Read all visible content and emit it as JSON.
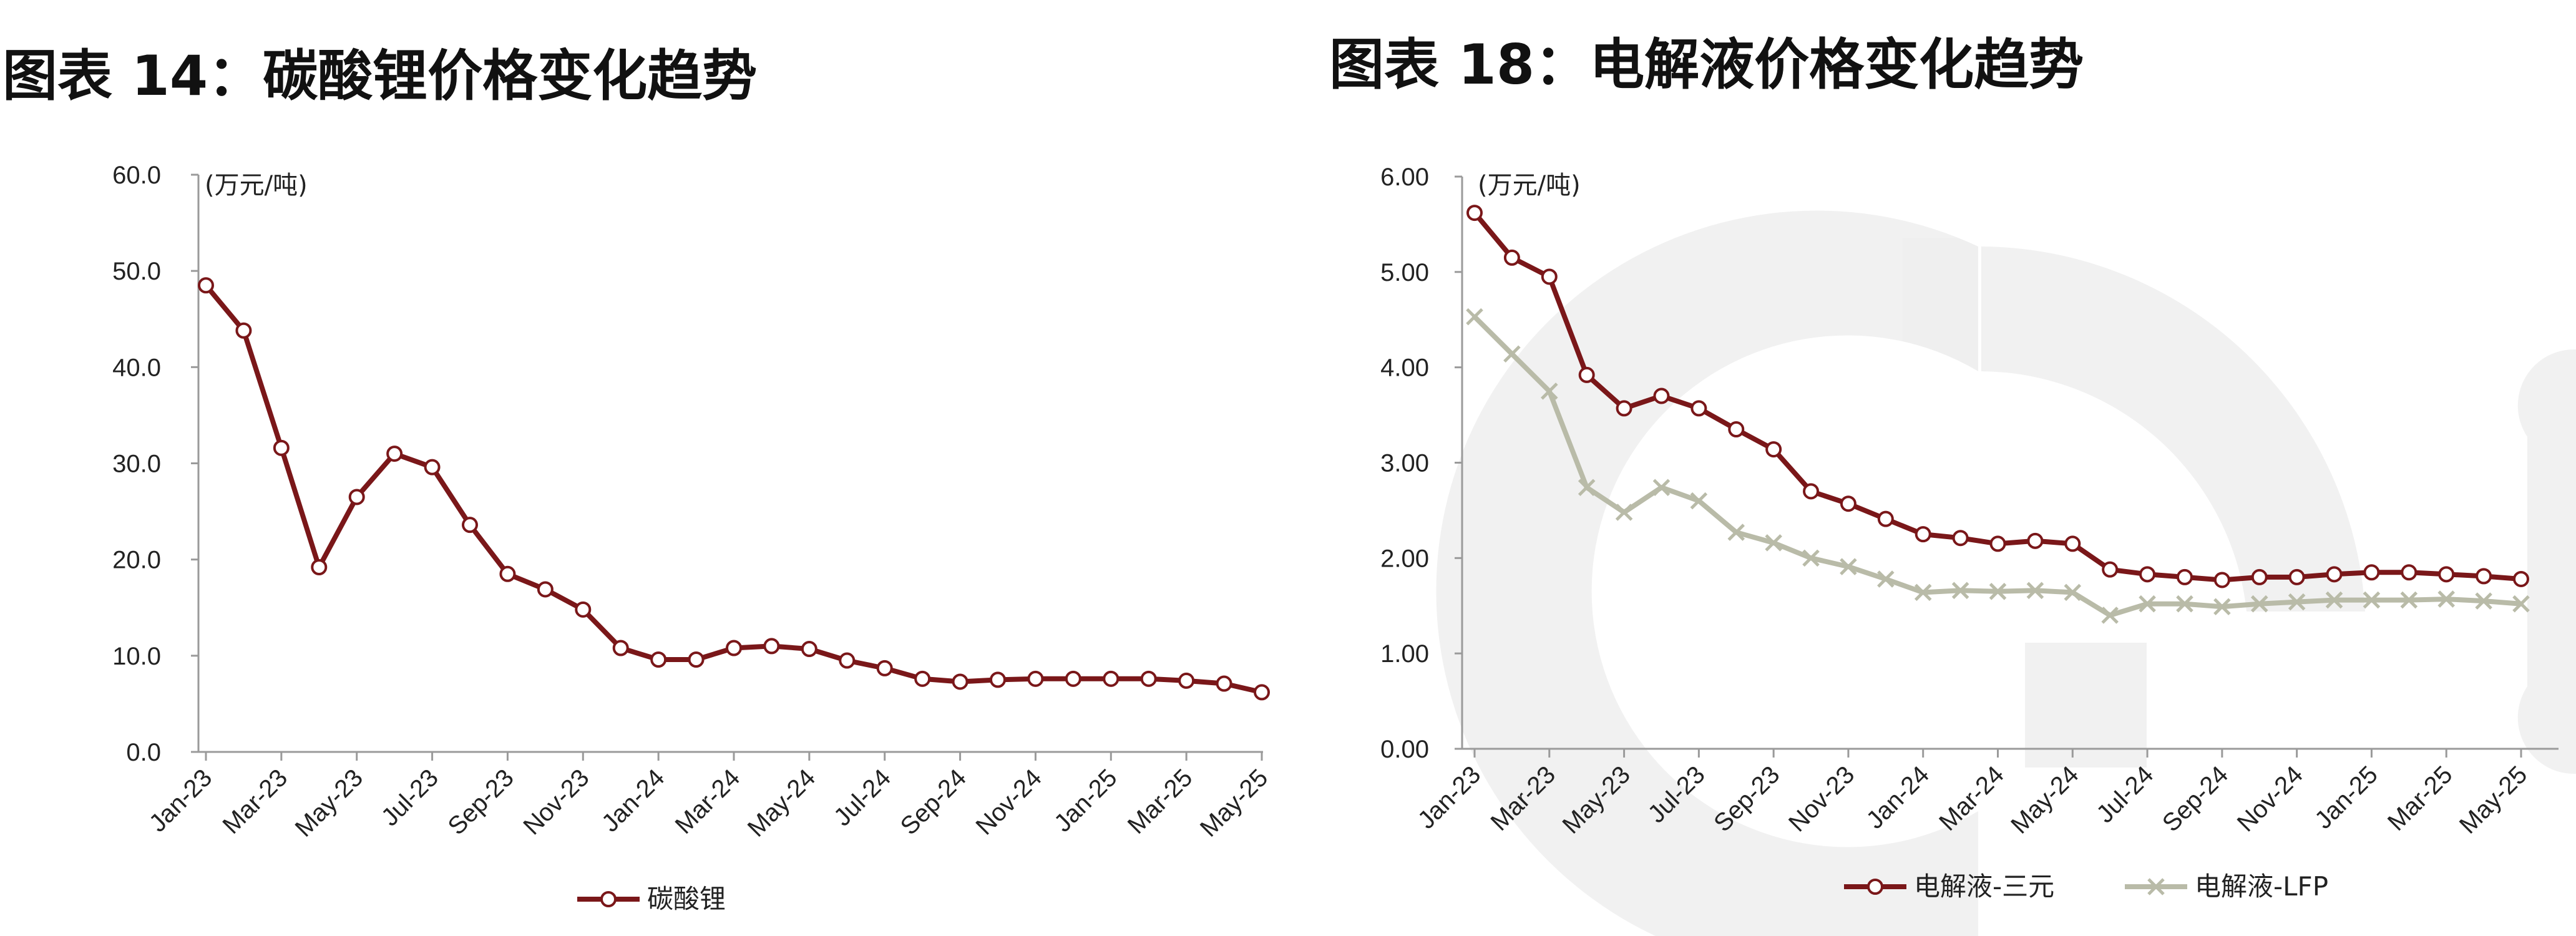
{
  "charts": [
    {
      "title": "图表 14：碳酸锂价格变化趋势"
    },
    {
      "title": "图表 18：电解液价格变化趋势"
    }
  ],
  "chart_data": [
    {
      "type": "line",
      "title": "图表 14：碳酸锂价格变化趋势",
      "unit_label": "(万元/吨)",
      "xlabel": "",
      "ylabel": "",
      "ylim": [
        0,
        60
      ],
      "y_ticks": [
        "0.0",
        "10.0",
        "20.0",
        "30.0",
        "40.0",
        "50.0",
        "60.0"
      ],
      "x": [
        "Jan-23",
        "Feb-23",
        "Mar-23",
        "Apr-23",
        "May-23",
        "Jun-23",
        "Jul-23",
        "Aug-23",
        "Sep-23",
        "Oct-23",
        "Nov-23",
        "Dec-23",
        "Jan-24",
        "Feb-24",
        "Mar-24",
        "Apr-24",
        "May-24",
        "Jun-24",
        "Jul-24",
        "Aug-24",
        "Sep-24",
        "Oct-24",
        "Nov-24",
        "Dec-24",
        "Jan-25",
        "Feb-25",
        "Mar-25",
        "Apr-25",
        "May-25"
      ],
      "x_tick_labels": [
        "Jan-23",
        "Mar-23",
        "May-23",
        "Jul-23",
        "Sep-23",
        "Nov-23",
        "Jan-24",
        "Mar-24",
        "May-24",
        "Jul-24",
        "Sep-24",
        "Nov-24",
        "Jan-25",
        "Mar-25",
        "May-25"
      ],
      "legend_position": "bottom",
      "grid": false,
      "series": [
        {
          "name": "碳酸锂",
          "color": "#7a1719",
          "marker": "circle",
          "values": [
            48.5,
            43.8,
            31.6,
            19.2,
            26.5,
            31.0,
            29.6,
            23.6,
            18.5,
            16.9,
            14.8,
            10.8,
            9.6,
            9.6,
            10.8,
            11.0,
            10.7,
            9.5,
            8.7,
            7.6,
            7.3,
            7.5,
            7.6,
            7.6,
            7.6,
            7.6,
            7.4,
            7.1,
            6.2
          ]
        }
      ]
    },
    {
      "type": "line",
      "title": "图表 18：电解液价格变化趋势",
      "unit_label": "(万元/吨)",
      "xlabel": "",
      "ylabel": "",
      "ylim": [
        0,
        6
      ],
      "y_ticks": [
        "0.00",
        "1.00",
        "2.00",
        "3.00",
        "4.00",
        "5.00",
        "6.00"
      ],
      "x": [
        "Jan-23",
        "Feb-23",
        "Mar-23",
        "Apr-23",
        "May-23",
        "Jun-23",
        "Jul-23",
        "Aug-23",
        "Sep-23",
        "Oct-23",
        "Nov-23",
        "Dec-23",
        "Jan-24",
        "Feb-24",
        "Mar-24",
        "Apr-24",
        "May-24",
        "Jun-24",
        "Jul-24",
        "Aug-24",
        "Sep-24",
        "Oct-24",
        "Nov-24",
        "Dec-24",
        "Jan-25",
        "Feb-25",
        "Mar-25",
        "Apr-25",
        "May-25"
      ],
      "x_tick_labels": [
        "Jan-23",
        "Mar-23",
        "May-23",
        "Jul-23",
        "Sep-23",
        "Nov-23",
        "Jan-24",
        "Mar-24",
        "May-24",
        "Jul-24",
        "Sep-24",
        "Nov-24",
        "Jan-25",
        "Mar-25",
        "May-25"
      ],
      "legend_position": "bottom",
      "grid": false,
      "series": [
        {
          "name": "电解液-三元",
          "color": "#7a1719",
          "marker": "circle",
          "values": [
            5.62,
            5.15,
            4.95,
            3.92,
            3.57,
            3.7,
            3.57,
            3.35,
            3.14,
            2.7,
            2.57,
            2.41,
            2.25,
            2.21,
            2.15,
            2.18,
            2.15,
            1.88,
            1.83,
            1.8,
            1.77,
            1.8,
            1.8,
            1.83,
            1.85,
            1.85,
            1.83,
            1.81,
            1.78
          ]
        },
        {
          "name": "电解液-LFP",
          "color": "#b9bba8",
          "marker": "x",
          "values": [
            4.53,
            4.14,
            3.75,
            2.74,
            2.48,
            2.74,
            2.6,
            2.27,
            2.16,
            2.0,
            1.91,
            1.78,
            1.64,
            1.66,
            1.65,
            1.66,
            1.64,
            1.4,
            1.52,
            1.52,
            1.49,
            1.52,
            1.54,
            1.56,
            1.56,
            1.56,
            1.57,
            1.55,
            1.52
          ]
        }
      ]
    }
  ]
}
